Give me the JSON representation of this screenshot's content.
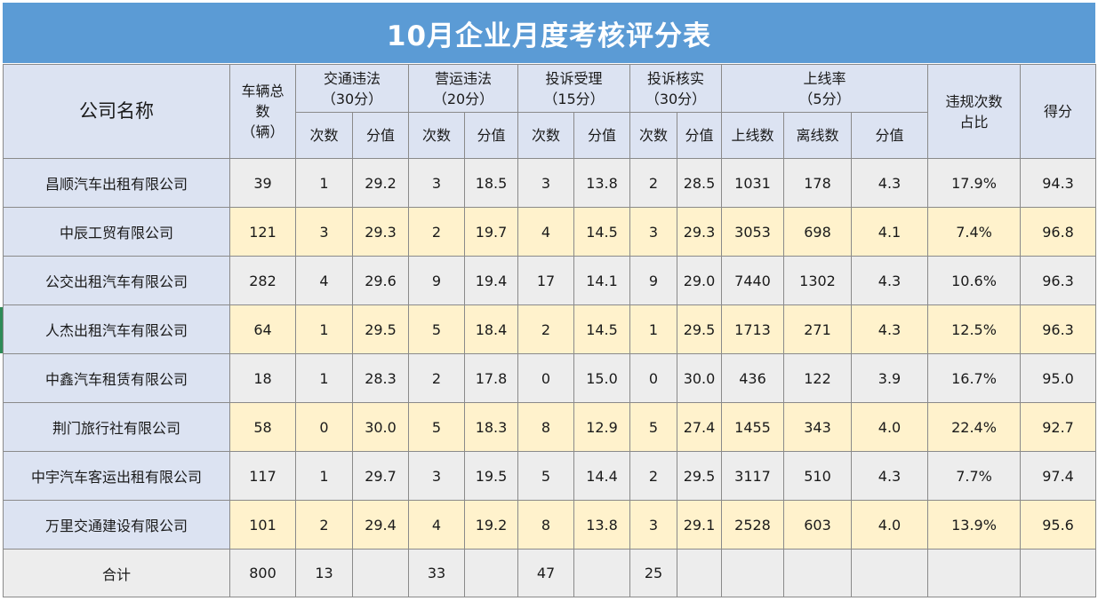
{
  "title": "10月企业月度考核评分表",
  "headers": {
    "company": "公司名称",
    "vehicles": [
      "车辆总",
      "数",
      "（辆）"
    ],
    "traffic": [
      "交通违法",
      "（30分）"
    ],
    "operation": [
      "营运违法",
      "（20分）"
    ],
    "complaint_accept": [
      "投诉受理",
      "（15分）"
    ],
    "complaint_verify": [
      "投诉核实",
      "（30分）"
    ],
    "online_rate": [
      "上线率",
      "（5分）"
    ],
    "violation_ratio": [
      "违规次数",
      "占比"
    ],
    "score": "得分",
    "count": "次数",
    "points": "分值",
    "online_count": "上线数",
    "offline_count": "离线数"
  },
  "rows": [
    {
      "name": "昌顺汽车出租有限公司",
      "vehicles": "39",
      "traffic_count": "1",
      "traffic_points": "29.2",
      "op_count": "3",
      "op_points": "18.5",
      "ca_count": "3",
      "ca_points": "13.8",
      "cv_count": "2",
      "cv_points": "28.5",
      "online": "1031",
      "offline": "178",
      "online_points": "4.3",
      "ratio": "17.9%",
      "score": "94.3"
    },
    {
      "name": "中辰工贸有限公司",
      "vehicles": "121",
      "traffic_count": "3",
      "traffic_points": "29.3",
      "op_count": "2",
      "op_points": "19.7",
      "ca_count": "4",
      "ca_points": "14.5",
      "cv_count": "3",
      "cv_points": "29.3",
      "online": "3053",
      "offline": "698",
      "online_points": "4.1",
      "ratio": "7.4%",
      "score": "96.8"
    },
    {
      "name": "公交出租汽车有限公司",
      "vehicles": "282",
      "traffic_count": "4",
      "traffic_points": "29.6",
      "op_count": "9",
      "op_points": "19.4",
      "ca_count": "17",
      "ca_points": "14.1",
      "cv_count": "9",
      "cv_points": "29.0",
      "online": "7440",
      "offline": "1302",
      "online_points": "4.3",
      "ratio": "10.6%",
      "score": "96.3"
    },
    {
      "name": "人杰出租汽车有限公司",
      "vehicles": "64",
      "traffic_count": "1",
      "traffic_points": "29.5",
      "op_count": "5",
      "op_points": "18.4",
      "ca_count": "2",
      "ca_points": "14.5",
      "cv_count": "1",
      "cv_points": "29.5",
      "online": "1713",
      "offline": "271",
      "online_points": "4.3",
      "ratio": "12.5%",
      "score": "96.3"
    },
    {
      "name": "中鑫汽车租赁有限公司",
      "vehicles": "18",
      "traffic_count": "1",
      "traffic_points": "28.3",
      "op_count": "2",
      "op_points": "17.8",
      "ca_count": "0",
      "ca_points": "15.0",
      "cv_count": "0",
      "cv_points": "30.0",
      "online": "436",
      "offline": "122",
      "online_points": "3.9",
      "ratio": "16.7%",
      "score": "95.0"
    },
    {
      "name": "荆门旅行社有限公司",
      "vehicles": "58",
      "traffic_count": "0",
      "traffic_points": "30.0",
      "op_count": "5",
      "op_points": "18.3",
      "ca_count": "8",
      "ca_points": "12.9",
      "cv_count": "5",
      "cv_points": "27.4",
      "online": "1455",
      "offline": "343",
      "online_points": "4.0",
      "ratio": "22.4%",
      "score": "92.7"
    },
    {
      "name": "中宇汽车客运出租有限公司",
      "vehicles": "117",
      "traffic_count": "1",
      "traffic_points": "29.7",
      "op_count": "3",
      "op_points": "19.5",
      "ca_count": "5",
      "ca_points": "14.4",
      "cv_count": "2",
      "cv_points": "29.5",
      "online": "3117",
      "offline": "510",
      "online_points": "4.3",
      "ratio": "7.7%",
      "score": "97.4"
    },
    {
      "name": "万里交通建设有限公司",
      "vehicles": "101",
      "traffic_count": "2",
      "traffic_points": "29.4",
      "op_count": "4",
      "op_points": "19.2",
      "ca_count": "8",
      "ca_points": "13.8",
      "cv_count": "3",
      "cv_points": "29.1",
      "online": "2528",
      "offline": "603",
      "online_points": "4.0",
      "ratio": "13.9%",
      "score": "95.6"
    }
  ],
  "total": {
    "label": "合计",
    "vehicles": "800",
    "traffic_count": "13",
    "op_count": "33",
    "ca_count": "47",
    "cv_count": "25"
  },
  "colors": {
    "title_bg": "#5b9bd5",
    "header_bg": "#dce3f2",
    "row_gray": "#ededed",
    "row_yellow": "#fff2cc"
  }
}
